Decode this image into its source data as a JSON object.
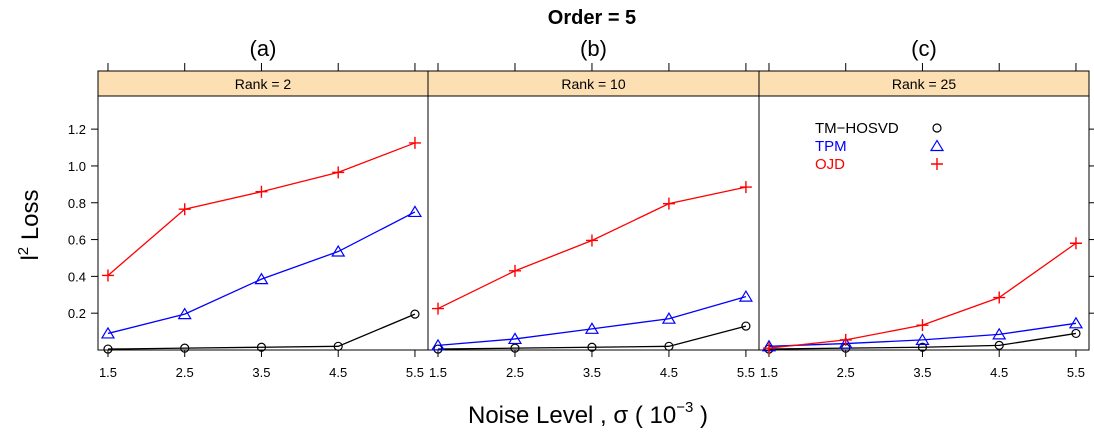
{
  "chart_data": {
    "type": "line",
    "title": "Order = 5",
    "xlabel": "Noise Level , σ  ( 10⁻³ )",
    "ylabel": "l² Loss",
    "x_ticks": [
      "1.5",
      "2.5",
      "3.5",
      "4.5",
      "5.5"
    ],
    "y_ticks": [
      "0.2",
      "0.4",
      "0.6",
      "0.8",
      "1.0",
      "1.2"
    ],
    "xlim": [
      1.37,
      5.67
    ],
    "ylim": [
      0,
      1.38
    ],
    "legend_placement": "top-left inside panel (c)",
    "panels": [
      {
        "subtitle": "(a)",
        "strip": "Rank = 2",
        "series": [
          {
            "name": "TM−HOSVD",
            "marker": "circle",
            "color": "#000000",
            "x": [
              1.5,
              2.5,
              3.5,
              4.5,
              5.5
            ],
            "values": [
              0.005,
              0.01,
              0.015,
              0.02,
              0.195
            ]
          },
          {
            "name": "TPM",
            "marker": "triangle",
            "color": "#0000ff",
            "x": [
              1.5,
              2.5,
              3.5,
              4.5,
              5.5
            ],
            "values": [
              0.09,
              0.195,
              0.385,
              0.535,
              0.75
            ]
          },
          {
            "name": "OJD",
            "marker": "plus",
            "color": "#ff0000",
            "x": [
              1.5,
              2.5,
              3.5,
              4.5,
              5.5
            ],
            "values": [
              0.405,
              0.765,
              0.86,
              0.965,
              1.125
            ]
          }
        ]
      },
      {
        "subtitle": "(b)",
        "strip": "Rank = 10",
        "series": [
          {
            "name": "TM−HOSVD",
            "marker": "circle",
            "color": "#000000",
            "x": [
              1.5,
              2.5,
              3.5,
              4.5,
              5.5
            ],
            "values": [
              0.005,
              0.01,
              0.015,
              0.02,
              0.13
            ]
          },
          {
            "name": "TPM",
            "marker": "triangle",
            "color": "#0000ff",
            "x": [
              1.5,
              2.5,
              3.5,
              4.5,
              5.5
            ],
            "values": [
              0.025,
              0.06,
              0.115,
              0.17,
              0.29
            ]
          },
          {
            "name": "OJD",
            "marker": "plus",
            "color": "#ff0000",
            "x": [
              1.5,
              2.5,
              3.5,
              4.5,
              5.5
            ],
            "values": [
              0.225,
              0.43,
              0.595,
              0.795,
              0.885
            ]
          }
        ]
      },
      {
        "subtitle": "(c)",
        "strip": "Rank = 25",
        "series": [
          {
            "name": "TM−HOSVD",
            "marker": "circle",
            "color": "#000000",
            "x": [
              1.5,
              2.5,
              3.5,
              4.5,
              5.5
            ],
            "values": [
              0.005,
              0.01,
              0.015,
              0.025,
              0.09
            ]
          },
          {
            "name": "TPM",
            "marker": "triangle",
            "color": "#0000ff",
            "x": [
              1.5,
              2.5,
              3.5,
              4.5,
              5.5
            ],
            "values": [
              0.02,
              0.035,
              0.055,
              0.085,
              0.145
            ]
          },
          {
            "name": "OJD",
            "marker": "plus",
            "color": "#ff0000",
            "x": [
              1.5,
              2.5,
              3.5,
              4.5,
              5.5
            ],
            "values": [
              0.01,
              0.055,
              0.135,
              0.285,
              0.58
            ]
          }
        ]
      }
    ]
  }
}
